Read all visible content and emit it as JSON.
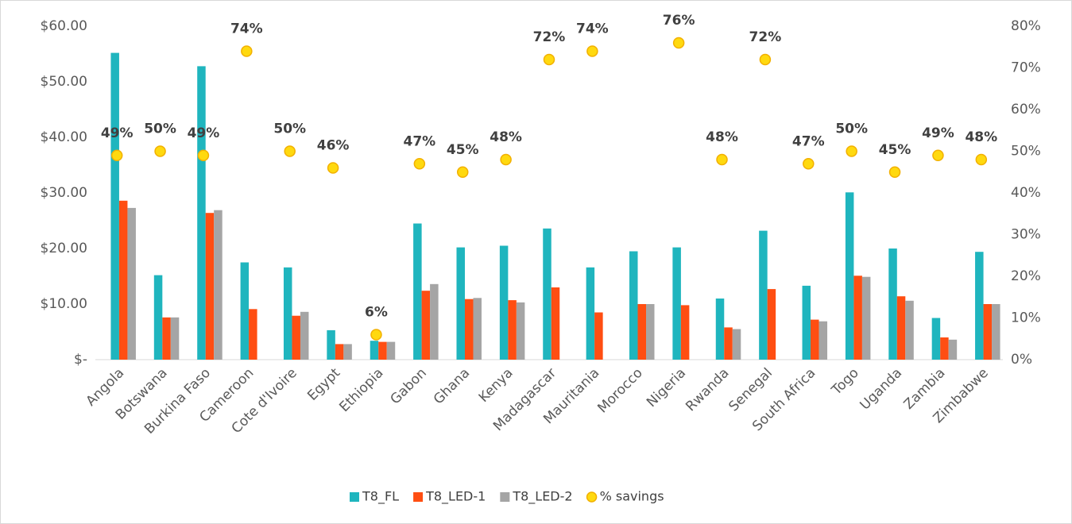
{
  "chart_data": {
    "type": "bar",
    "categories": [
      "Angola",
      "Botswana",
      "Burkina Faso",
      "Cameroon",
      "Cote d'Ivoire",
      "Egypt",
      "Ethiopia",
      "Gabon",
      "Ghana",
      "Kenya",
      "Madagascar",
      "Mauritania",
      "Morocco",
      "Nigeria",
      "Rwanda",
      "Senegal",
      "South Africa",
      "Togo",
      "Uganda",
      "Zambia",
      "Zimbabwe"
    ],
    "series": [
      {
        "name": "T8_FL",
        "color": "#1FB5BE",
        "values": [
          55.2,
          15.2,
          52.8,
          17.5,
          16.6,
          5.3,
          3.4,
          24.5,
          20.2,
          20.5,
          23.6,
          16.6,
          19.5,
          20.2,
          11.0,
          23.2,
          13.3,
          30.1,
          20.0,
          7.5,
          19.4
        ]
      },
      {
        "name": "T8_LED-1",
        "color": "#FF4E12",
        "values": [
          28.6,
          7.6,
          26.4,
          9.1,
          7.9,
          2.8,
          3.2,
          12.4,
          10.9,
          10.7,
          13.0,
          8.5,
          10.0,
          9.8,
          5.8,
          12.7,
          7.2,
          15.1,
          11.4,
          4.0,
          10.0
        ]
      },
      {
        "name": "T8_LED-2",
        "color": "#A5A5A5",
        "values": [
          27.3,
          7.6,
          26.9,
          null,
          8.6,
          2.8,
          3.2,
          13.6,
          11.1,
          10.3,
          null,
          null,
          10.0,
          null,
          5.5,
          null,
          6.9,
          14.9,
          10.6,
          3.6,
          10.0
        ]
      },
      {
        "name": "% savings",
        "color": "#FFD90F",
        "axis": "y2",
        "type": "scatter",
        "values": [
          49,
          50,
          49,
          74,
          50,
          46,
          6,
          47,
          45,
          48,
          72,
          74,
          null,
          76,
          48,
          72,
          47,
          50,
          45,
          49,
          48
        ],
        "value_labels": [
          "49%",
          "50%",
          "49%",
          "74%",
          "50%",
          "46%",
          "6%",
          "47%",
          "45%",
          "48%",
          "72%",
          "74%",
          null,
          "76%",
          "48%",
          "72%",
          "47%",
          "50%",
          "45%",
          "49%",
          "48%"
        ]
      }
    ],
    "ylim": [
      0,
      60
    ],
    "yticks": [
      {
        "value": 0,
        "label": "$-"
      },
      {
        "value": 10,
        "label": "$10.00"
      },
      {
        "value": 20,
        "label": "$20.00"
      },
      {
        "value": 30,
        "label": "$30.00"
      },
      {
        "value": 40,
        "label": "$40.00"
      },
      {
        "value": 50,
        "label": "$50.00"
      },
      {
        "value": 60,
        "label": "$60.00"
      }
    ],
    "y2lim": [
      0,
      80
    ],
    "y2ticks": [
      {
        "value": 0,
        "label": "0%"
      },
      {
        "value": 10,
        "label": "10%"
      },
      {
        "value": 20,
        "label": "20%"
      },
      {
        "value": 30,
        "label": "30%"
      },
      {
        "value": 40,
        "label": "40%"
      },
      {
        "value": 50,
        "label": "50%"
      },
      {
        "value": 60,
        "label": "60%"
      },
      {
        "value": 70,
        "label": "70%"
      },
      {
        "value": 80,
        "label": "80%"
      }
    ],
    "grid": false,
    "legend": "bottom"
  }
}
